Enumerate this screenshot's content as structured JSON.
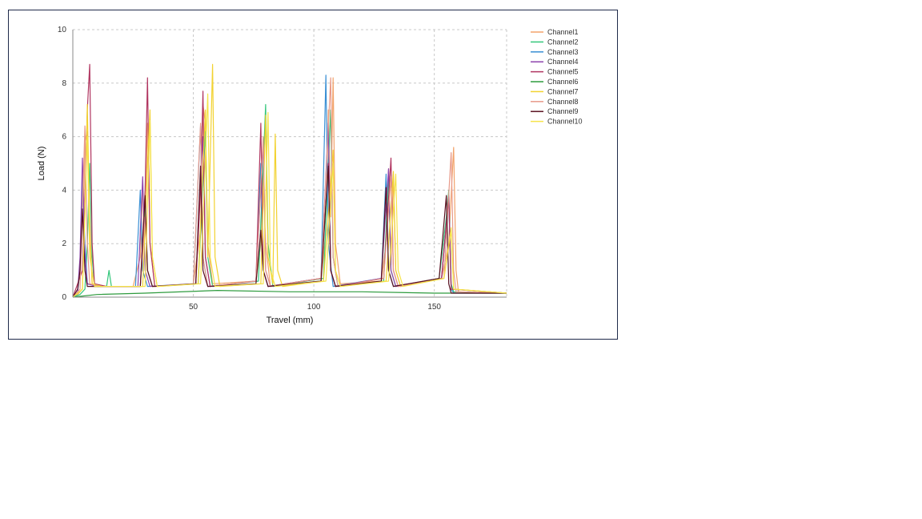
{
  "chart_data": {
    "type": "line",
    "title": "",
    "xlabel": "Travel (mm)",
    "ylabel": "Load (N)",
    "xlim": [
      0,
      180
    ],
    "ylim": [
      0,
      10
    ],
    "x_ticks": [
      50,
      100,
      150
    ],
    "y_ticks": [
      0,
      2,
      4,
      6,
      8,
      10
    ],
    "grid": true,
    "legend_position": "right",
    "series": [
      {
        "name": "Channel1",
        "color": "#f2a36b",
        "points": [
          [
            0,
            0
          ],
          [
            2,
            0.1
          ],
          [
            4,
            0.3
          ],
          [
            5,
            5.8
          ],
          [
            6,
            6.2
          ],
          [
            7,
            3.0
          ],
          [
            8,
            0.5
          ],
          [
            12,
            0.4
          ],
          [
            25,
            0.4
          ],
          [
            28,
            1.5
          ],
          [
            29,
            4.0
          ],
          [
            30,
            2.5
          ],
          [
            31,
            6.5
          ],
          [
            32,
            2.0
          ],
          [
            34,
            0.4
          ],
          [
            50,
            0.5
          ],
          [
            53,
            2.5
          ],
          [
            54,
            7.2
          ],
          [
            55,
            6.5
          ],
          [
            56,
            2.0
          ],
          [
            58,
            0.5
          ],
          [
            76,
            0.6
          ],
          [
            78,
            2.0
          ],
          [
            79,
            4.8
          ],
          [
            80,
            2.0
          ],
          [
            82,
            0.4
          ],
          [
            103,
            0.6
          ],
          [
            105,
            2.5
          ],
          [
            106,
            7.0
          ],
          [
            107,
            3.0
          ],
          [
            108,
            8.2
          ],
          [
            109,
            2.0
          ],
          [
            111,
            0.5
          ],
          [
            128,
            0.6
          ],
          [
            130,
            2.0
          ],
          [
            131,
            4.8
          ],
          [
            132,
            1.2
          ],
          [
            133,
            4.6
          ],
          [
            134,
            1.0
          ],
          [
            136,
            0.4
          ],
          [
            153,
            0.7
          ],
          [
            156,
            2.0
          ],
          [
            157,
            3.8
          ],
          [
            158,
            5.6
          ],
          [
            159,
            1.0
          ],
          [
            160,
            0.2
          ],
          [
            170,
            0.15
          ],
          [
            180,
            0.15
          ]
        ]
      },
      {
        "name": "Channel2",
        "color": "#34c77b",
        "points": [
          [
            0,
            0
          ],
          [
            3,
            0.1
          ],
          [
            5,
            0.3
          ],
          [
            6,
            2.0
          ],
          [
            7,
            5.0
          ],
          [
            8,
            1.5
          ],
          [
            9,
            0.4
          ],
          [
            14,
            0.4
          ],
          [
            15,
            1.0
          ],
          [
            16,
            0.4
          ],
          [
            28,
            0.4
          ],
          [
            30,
            3.5
          ],
          [
            31,
            1.0
          ],
          [
            33,
            0.4
          ],
          [
            52,
            0.5
          ],
          [
            55,
            6.2
          ],
          [
            56,
            1.5
          ],
          [
            58,
            0.4
          ],
          [
            77,
            0.6
          ],
          [
            80,
            7.2
          ],
          [
            81,
            2.0
          ],
          [
            83,
            0.4
          ],
          [
            104,
            0.7
          ],
          [
            107,
            7.0
          ],
          [
            108,
            1.5
          ],
          [
            110,
            0.4
          ],
          [
            129,
            0.6
          ],
          [
            131,
            4.5
          ],
          [
            132,
            1.0
          ],
          [
            134,
            0.4
          ],
          [
            152,
            0.7
          ],
          [
            155,
            3.0
          ],
          [
            156,
            4.0
          ],
          [
            157,
            0.5
          ],
          [
            158,
            0.2
          ],
          [
            180,
            0.15
          ]
        ]
      },
      {
        "name": "Channel3",
        "color": "#3a8fd4",
        "points": [
          [
            0,
            0
          ],
          [
            2,
            0.2
          ],
          [
            3,
            1.0
          ],
          [
            4,
            4.5
          ],
          [
            5,
            2.0
          ],
          [
            6,
            0.5
          ],
          [
            10,
            0.4
          ],
          [
            26,
            0.4
          ],
          [
            28,
            4.0
          ],
          [
            29,
            1.0
          ],
          [
            31,
            0.4
          ],
          [
            50,
            0.5
          ],
          [
            53,
            6.4
          ],
          [
            54,
            1.5
          ],
          [
            56,
            0.4
          ],
          [
            76,
            0.6
          ],
          [
            78,
            5.0
          ],
          [
            79,
            1.0
          ],
          [
            81,
            0.4
          ],
          [
            103,
            0.7
          ],
          [
            105,
            8.3
          ],
          [
            106,
            2.0
          ],
          [
            108,
            0.4
          ],
          [
            128,
            0.7
          ],
          [
            130,
            4.6
          ],
          [
            131,
            1.0
          ],
          [
            133,
            0.4
          ],
          [
            153,
            0.7
          ],
          [
            156,
            3.7
          ],
          [
            157,
            0.3
          ],
          [
            158,
            0.15
          ],
          [
            180,
            0.15
          ]
        ]
      },
      {
        "name": "Channel4",
        "color": "#8e44ad",
        "points": [
          [
            0,
            0
          ],
          [
            2,
            0.2
          ],
          [
            3,
            1.5
          ],
          [
            4,
            5.2
          ],
          [
            5,
            1.5
          ],
          [
            6,
            0.5
          ],
          [
            10,
            0.4
          ],
          [
            27,
            0.4
          ],
          [
            29,
            4.5
          ],
          [
            30,
            1.0
          ],
          [
            32,
            0.4
          ],
          [
            51,
            0.5
          ],
          [
            54,
            6.0
          ],
          [
            55,
            1.5
          ],
          [
            57,
            0.4
          ],
          [
            76,
            0.6
          ],
          [
            79,
            5.8
          ],
          [
            80,
            1.0
          ],
          [
            82,
            0.4
          ],
          [
            103,
            0.7
          ],
          [
            106,
            6.5
          ],
          [
            107,
            1.0
          ],
          [
            109,
            0.4
          ],
          [
            128,
            0.7
          ],
          [
            131,
            4.8
          ],
          [
            132,
            1.0
          ],
          [
            134,
            0.4
          ],
          [
            153,
            0.7
          ],
          [
            156,
            3.8
          ],
          [
            157,
            0.3
          ],
          [
            180,
            0.15
          ]
        ]
      },
      {
        "name": "Channel5",
        "color": "#b03560",
        "points": [
          [
            0,
            0
          ],
          [
            2,
            0.5
          ],
          [
            4,
            1.0
          ],
          [
            5,
            3.5
          ],
          [
            6,
            7.0
          ],
          [
            7,
            8.7
          ],
          [
            8,
            2.0
          ],
          [
            9,
            0.5
          ],
          [
            14,
            0.4
          ],
          [
            28,
            0.4
          ],
          [
            30,
            4.0
          ],
          [
            31,
            8.2
          ],
          [
            32,
            2.0
          ],
          [
            34,
            0.4
          ],
          [
            51,
            0.5
          ],
          [
            53,
            4.0
          ],
          [
            54,
            7.7
          ],
          [
            55,
            1.5
          ],
          [
            57,
            0.4
          ],
          [
            76,
            0.6
          ],
          [
            78,
            6.5
          ],
          [
            79,
            1.0
          ],
          [
            81,
            0.4
          ],
          [
            103,
            0.7
          ],
          [
            106,
            5.0
          ],
          [
            107,
            1.0
          ],
          [
            109,
            0.4
          ],
          [
            129,
            0.7
          ],
          [
            132,
            5.2
          ],
          [
            133,
            1.0
          ],
          [
            135,
            0.4
          ],
          [
            153,
            0.7
          ],
          [
            156,
            3.8
          ],
          [
            157,
            0.3
          ],
          [
            180,
            0.15
          ]
        ]
      },
      {
        "name": "Channel6",
        "color": "#2e9b3e",
        "points": [
          [
            0,
            0
          ],
          [
            10,
            0.1
          ],
          [
            30,
            0.15
          ],
          [
            60,
            0.25
          ],
          [
            90,
            0.2
          ],
          [
            120,
            0.2
          ],
          [
            150,
            0.15
          ],
          [
            180,
            0.15
          ]
        ]
      },
      {
        "name": "Channel7",
        "color": "#f2d230",
        "points": [
          [
            0,
            0
          ],
          [
            4,
            0.3
          ],
          [
            5,
            3.0
          ],
          [
            6,
            7.2
          ],
          [
            7,
            2.5
          ],
          [
            8,
            0.5
          ],
          [
            12,
            0.4
          ],
          [
            29,
            0.4
          ],
          [
            31,
            5.0
          ],
          [
            32,
            7.0
          ],
          [
            33,
            1.5
          ],
          [
            35,
            0.4
          ],
          [
            52,
            0.5
          ],
          [
            55,
            7.0
          ],
          [
            56,
            1.5
          ],
          [
            58,
            8.7
          ],
          [
            59,
            1.5
          ],
          [
            61,
            0.4
          ],
          [
            78,
            0.5
          ],
          [
            80,
            6.8
          ],
          [
            81,
            1.5
          ],
          [
            83,
            0.5
          ],
          [
            84,
            6.1
          ],
          [
            85,
            1.0
          ],
          [
            87,
            0.4
          ],
          [
            104,
            0.6
          ],
          [
            108,
            5.5
          ],
          [
            109,
            1.0
          ],
          [
            111,
            0.4
          ],
          [
            130,
            0.6
          ],
          [
            133,
            4.7
          ],
          [
            134,
            1.0
          ],
          [
            136,
            0.4
          ],
          [
            154,
            0.7
          ],
          [
            157,
            2.5
          ],
          [
            158,
            0.3
          ],
          [
            180,
            0.15
          ]
        ]
      },
      {
        "name": "Channel8",
        "color": "#e89a8a",
        "points": [
          [
            0,
            0
          ],
          [
            3,
            0.3
          ],
          [
            5,
            6.4
          ],
          [
            6,
            2.0
          ],
          [
            7,
            0.5
          ],
          [
            11,
            0.4
          ],
          [
            28,
            0.4
          ],
          [
            30,
            3.0
          ],
          [
            31,
            1.0
          ],
          [
            33,
            0.4
          ],
          [
            50,
            0.5
          ],
          [
            53,
            6.5
          ],
          [
            54,
            1.5
          ],
          [
            56,
            0.4
          ],
          [
            76,
            0.6
          ],
          [
            79,
            6.0
          ],
          [
            80,
            1.0
          ],
          [
            82,
            0.4
          ],
          [
            103,
            0.7
          ],
          [
            107,
            8.2
          ],
          [
            108,
            1.5
          ],
          [
            110,
            0.4
          ],
          [
            129,
            0.7
          ],
          [
            132,
            4.5
          ],
          [
            133,
            1.0
          ],
          [
            135,
            0.4
          ],
          [
            154,
            0.7
          ],
          [
            157,
            5.4
          ],
          [
            158,
            1.0
          ],
          [
            159,
            0.2
          ],
          [
            180,
            0.15
          ]
        ]
      },
      {
        "name": "Channel9",
        "color": "#5a1020",
        "points": [
          [
            0,
            0
          ],
          [
            2,
            0.3
          ],
          [
            3,
            1.0
          ],
          [
            4,
            3.3
          ],
          [
            5,
            1.0
          ],
          [
            6,
            0.4
          ],
          [
            10,
            0.4
          ],
          [
            28,
            0.4
          ],
          [
            30,
            3.8
          ],
          [
            31,
            1.0
          ],
          [
            33,
            0.4
          ],
          [
            51,
            0.5
          ],
          [
            53,
            4.9
          ],
          [
            54,
            1.0
          ],
          [
            56,
            0.4
          ],
          [
            76,
            0.5
          ],
          [
            78,
            2.5
          ],
          [
            79,
            1.0
          ],
          [
            81,
            0.4
          ],
          [
            103,
            0.6
          ],
          [
            106,
            4.9
          ],
          [
            107,
            1.0
          ],
          [
            109,
            0.4
          ],
          [
            128,
            0.6
          ],
          [
            130,
            4.1
          ],
          [
            131,
            1.0
          ],
          [
            133,
            0.4
          ],
          [
            152,
            0.7
          ],
          [
            155,
            3.8
          ],
          [
            156,
            0.5
          ],
          [
            157,
            0.15
          ],
          [
            180,
            0.15
          ]
        ]
      },
      {
        "name": "Channel10",
        "color": "#f5e34a",
        "points": [
          [
            0,
            0
          ],
          [
            4,
            0.3
          ],
          [
            6,
            6.0
          ],
          [
            7,
            1.5
          ],
          [
            9,
            0.4
          ],
          [
            13,
            0.4
          ],
          [
            30,
            0.4
          ],
          [
            32,
            6.6
          ],
          [
            33,
            1.5
          ],
          [
            35,
            0.4
          ],
          [
            53,
            0.5
          ],
          [
            56,
            7.6
          ],
          [
            57,
            1.5
          ],
          [
            59,
            0.4
          ],
          [
            79,
            0.5
          ],
          [
            81,
            6.9
          ],
          [
            82,
            1.0
          ],
          [
            84,
            0.4
          ],
          [
            105,
            0.6
          ],
          [
            108,
            5.0
          ],
          [
            109,
            1.0
          ],
          [
            111,
            0.4
          ],
          [
            131,
            0.6
          ],
          [
            134,
            4.6
          ],
          [
            135,
            1.0
          ],
          [
            137,
            0.4
          ],
          [
            154,
            0.7
          ],
          [
            157,
            2.6
          ],
          [
            158,
            0.3
          ],
          [
            180,
            0.15
          ]
        ]
      }
    ]
  }
}
